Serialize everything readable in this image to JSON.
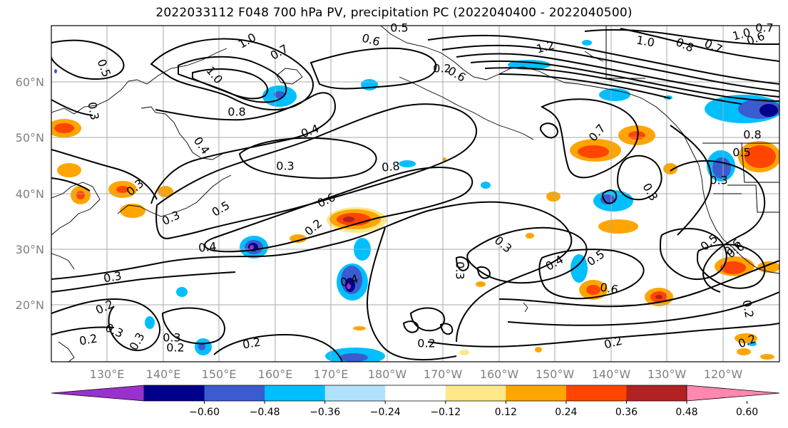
{
  "title": "2022033112 F048 700 hPa PV, precipitation PC (2022040400 - 2022040500)",
  "lat_labels": [
    "60°N",
    "50°N",
    "40°N",
    "30°N",
    "20°N"
  ],
  "lon_labels": [
    "130°E",
    "140°E",
    "150°E",
    "160°E",
    "170°E",
    "180°W",
    "170°W",
    "160°W",
    "150°W",
    "140°W",
    "130°W",
    "120°W"
  ],
  "colorbar": {
    "colors": [
      "#9932cc",
      "#00008b",
      "#3a5ccf",
      "#00bfff",
      "#b0e2ff",
      "#ffffff",
      "#ffe78a",
      "#ffa500",
      "#ff4500",
      "#b22222",
      "#ff88b0"
    ],
    "ticks": [
      "−0.60",
      "−0.48",
      "−0.36",
      "−0.24",
      "−0.12",
      "0.12",
      "0.24",
      "0.36",
      "0.48",
      "0.60"
    ]
  },
  "contour_labels": [
    {
      "text": "1.0"
    },
    {
      "text": "0.7"
    },
    {
      "text": "0.6"
    },
    {
      "text": "0.5"
    },
    {
      "text": "0.5"
    },
    {
      "text": "1.2"
    },
    {
      "text": "1.0"
    },
    {
      "text": "0.8"
    },
    {
      "text": "1.0"
    },
    {
      "text": "0.7"
    },
    {
      "text": "0.6"
    },
    {
      "text": "0.7"
    },
    {
      "text": "0.3"
    },
    {
      "text": "1.0"
    },
    {
      "text": "0.8"
    },
    {
      "text": "0.6"
    },
    {
      "text": "0.4"
    },
    {
      "text": "0.3"
    },
    {
      "text": "0.7"
    },
    {
      "text": "0.8"
    },
    {
      "text": "0.4"
    },
    {
      "text": "0.3"
    },
    {
      "text": "0.6"
    },
    {
      "text": "0.5"
    },
    {
      "text": "0.2"
    },
    {
      "text": "0.4"
    },
    {
      "text": "0.3"
    },
    {
      "text": "0.3"
    },
    {
      "text": "0.5"
    },
    {
      "text": "0.6"
    },
    {
      "text": "0.3"
    },
    {
      "text": "0.4"
    },
    {
      "text": "0.5"
    },
    {
      "text": "0.6"
    },
    {
      "text": "0.3"
    },
    {
      "text": "0.2"
    },
    {
      "text": "0.3"
    },
    {
      "text": "0.2"
    },
    {
      "text": "0.2"
    },
    {
      "text": "0.3"
    },
    {
      "text": "0.3"
    },
    {
      "text": "0.2"
    },
    {
      "text": "0.2"
    },
    {
      "text": "0.2"
    },
    {
      "text": "0.2"
    },
    {
      "text": "0.2"
    },
    {
      "text": "0.4"
    },
    {
      "text": "0.6"
    },
    {
      "text": "0.5"
    },
    {
      "text": "0.3"
    },
    {
      "text": "0.8"
    },
    {
      "text": "0.3"
    },
    {
      "text": "0.2"
    }
  ]
}
